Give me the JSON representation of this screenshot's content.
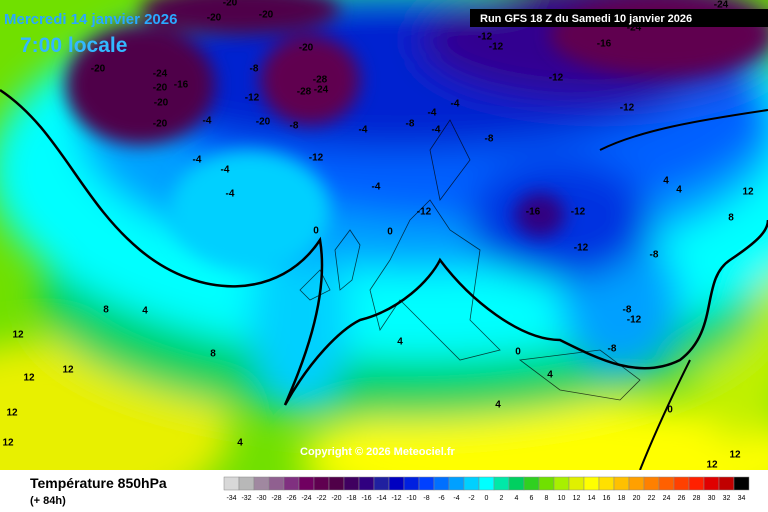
{
  "header": {
    "date": "Mercredi 14 janvier 2026",
    "time": "7:00 locale",
    "run": "Run GFS 18 Z du Samedi 10 janvier 2026"
  },
  "footer": {
    "title": "Température 850hPa",
    "lead": "(+ 84h)",
    "copyright": "Copyright © 2026 Meteociel.fr"
  },
  "legend": {
    "values": [
      -34,
      -32,
      -30,
      -28,
      -26,
      -24,
      -22,
      -20,
      -18,
      -16,
      -14,
      -12,
      -10,
      -8,
      -6,
      -4,
      -2,
      0,
      2,
      4,
      6,
      8,
      10,
      12,
      14,
      16,
      18,
      20,
      22,
      24,
      26,
      28,
      30,
      32,
      34
    ],
    "colors": [
      "#d8d8d8",
      "#b8b8b8",
      "#a088a0",
      "#906090",
      "#803080",
      "#700060",
      "#600050",
      "#500048",
      "#400060",
      "#300080",
      "#2020a0",
      "#0000c0",
      "#0020e0",
      "#0040ff",
      "#0070ff",
      "#00a0ff",
      "#00d0ff",
      "#00ffff",
      "#00e8a8",
      "#00d060",
      "#30d020",
      "#70e000",
      "#a8f000",
      "#e0f000",
      "#ffff00",
      "#ffe000",
      "#ffc000",
      "#ffa000",
      "#ff8000",
      "#ff6000",
      "#ff4000",
      "#ff2000",
      "#e00000",
      "#c00000",
      "#000000"
    ]
  },
  "map_labels": [
    -20,
    -20,
    -20,
    -24,
    -16,
    -24,
    -16,
    -12,
    -12,
    -20,
    -24,
    -20,
    -16,
    -20,
    -20,
    -8,
    -20,
    -28,
    -28,
    -24,
    -12,
    -20,
    -8,
    -12,
    -12,
    -4,
    -4,
    -8,
    -4,
    -8,
    -12,
    -4,
    -4,
    -4,
    -4,
    -4,
    -4,
    -16,
    -12,
    -12,
    -8,
    0,
    0,
    -12,
    4,
    4,
    8,
    12,
    -8,
    -12,
    -8,
    8,
    4,
    8,
    12,
    12,
    12,
    12,
    12,
    4,
    4,
    0,
    4,
    4,
    0,
    12,
    12
  ]
}
